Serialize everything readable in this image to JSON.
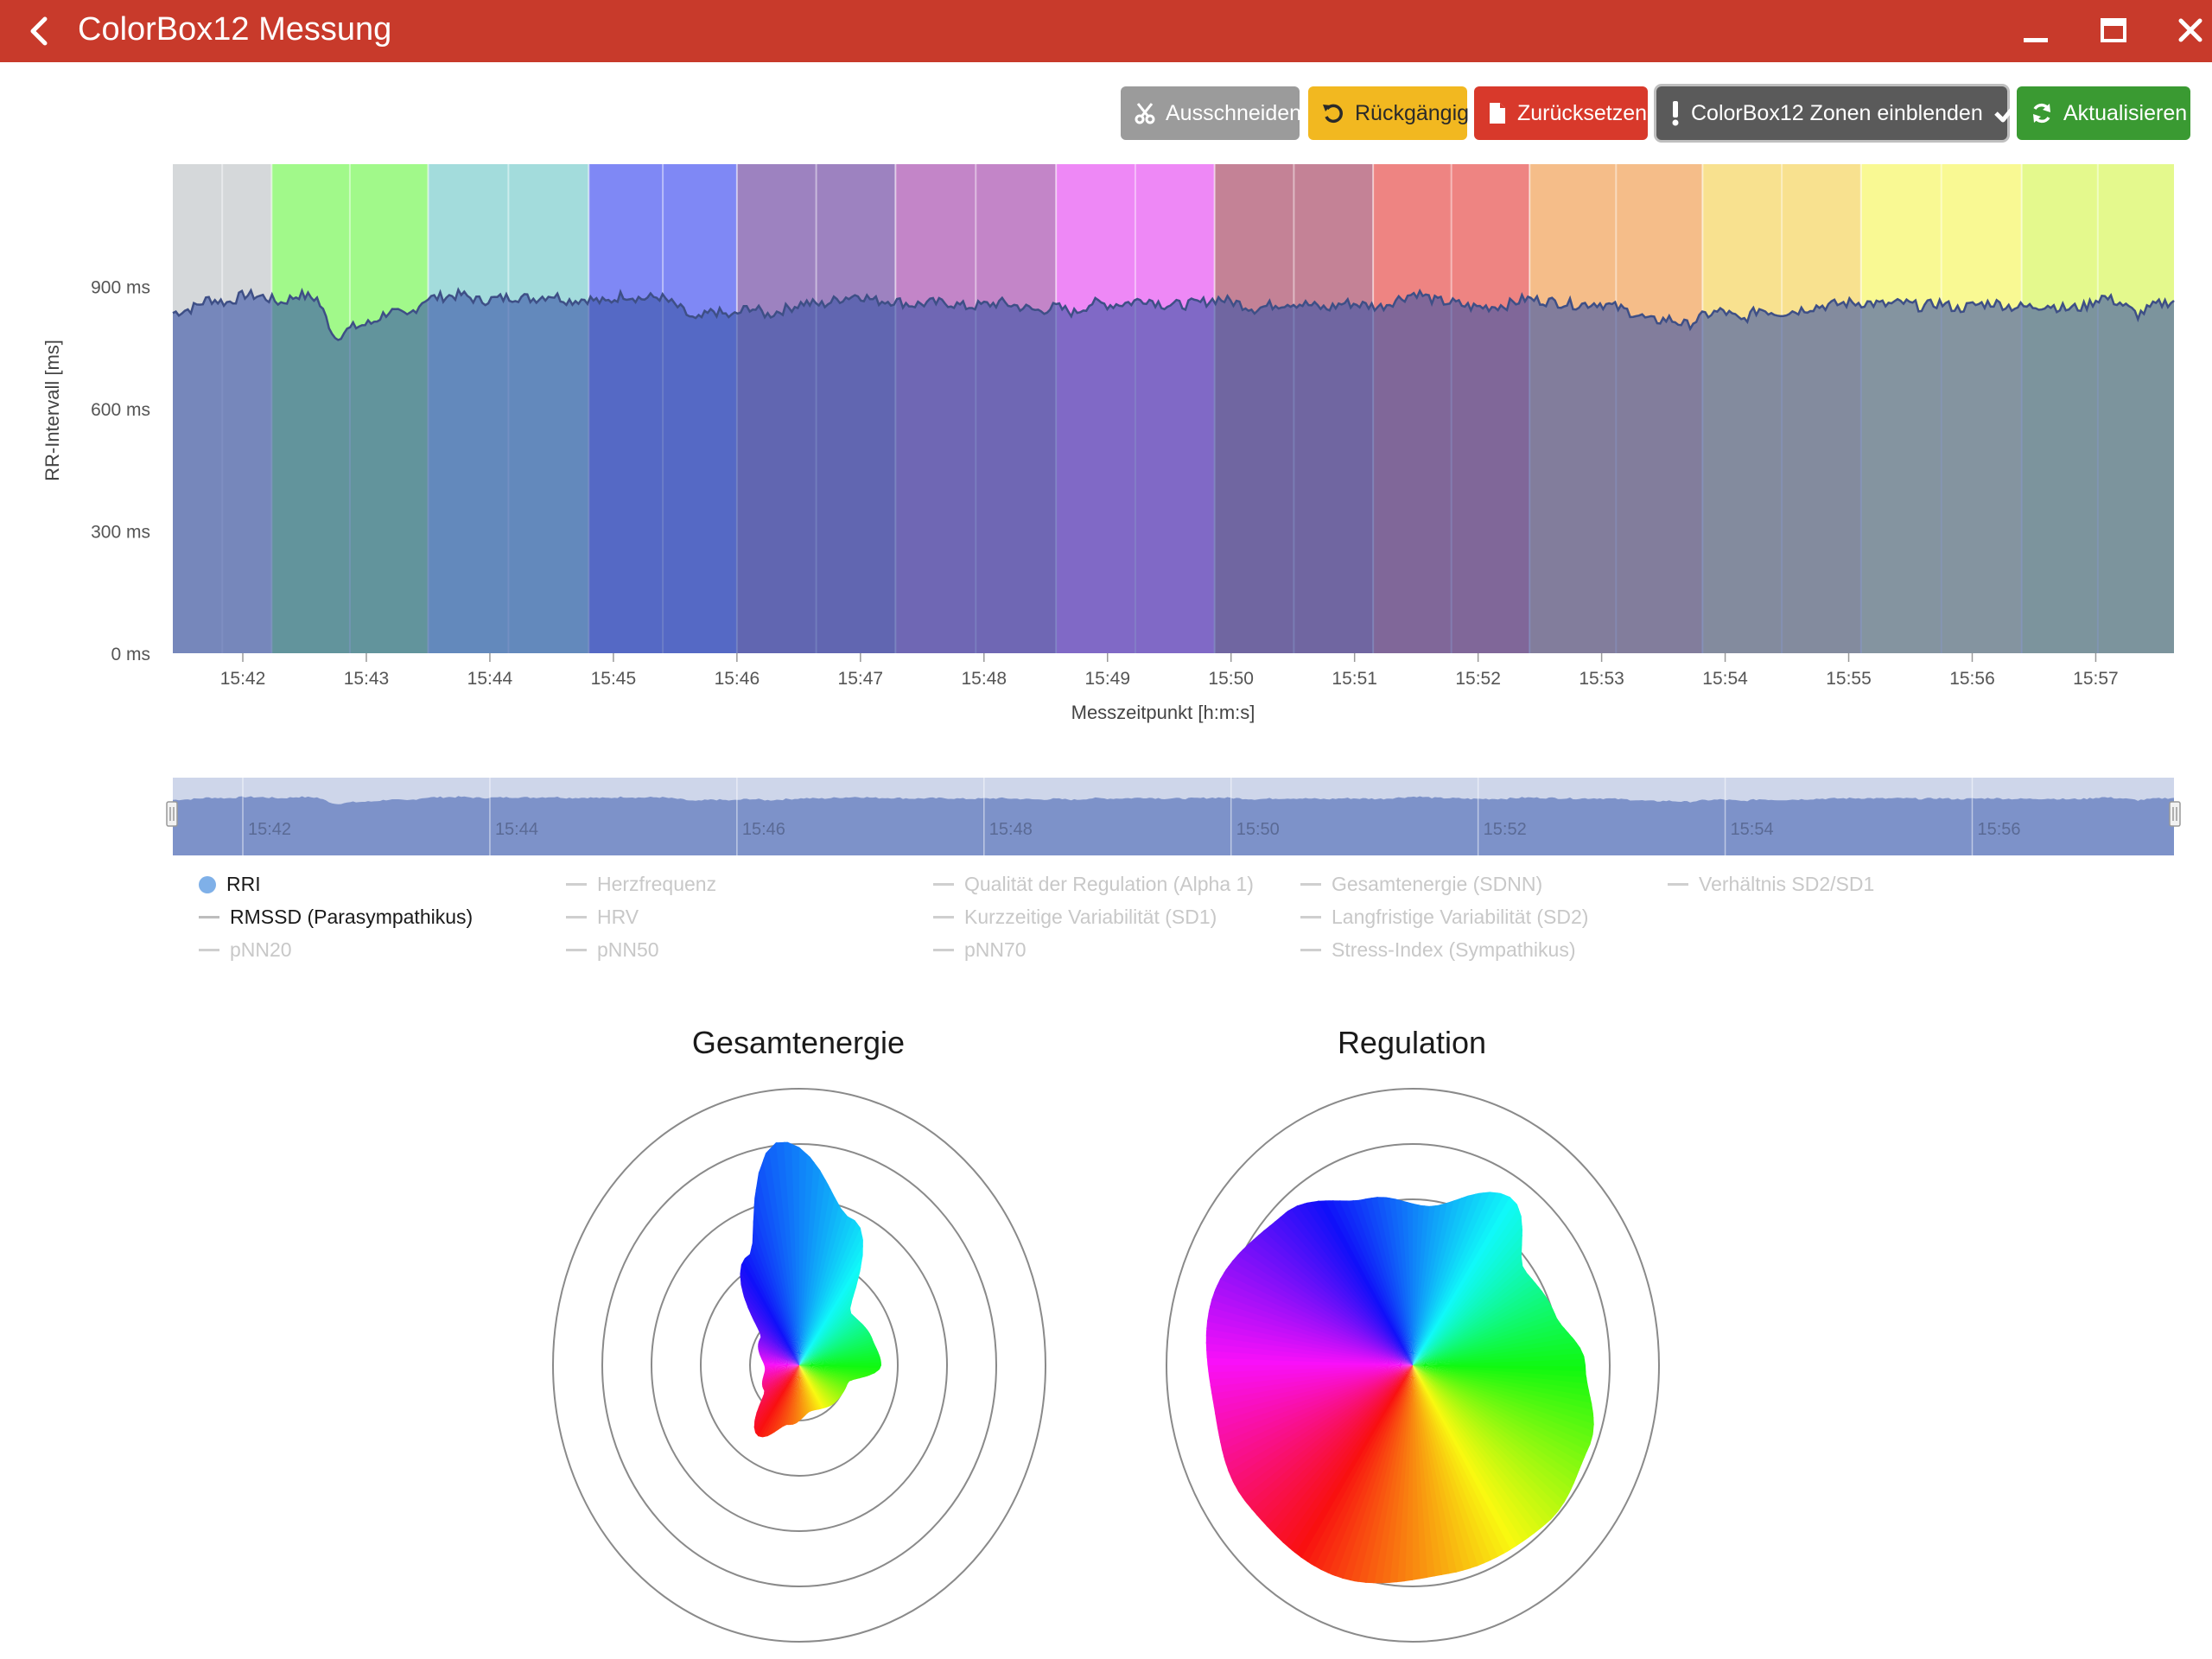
{
  "window": {
    "title": "ColorBox12 Messung"
  },
  "toolbar": {
    "cut_label": "Ausschneiden",
    "undo_label": "Rückgängig",
    "reset_label": "Zurücksetzen",
    "zones_label": "ColorBox12 Zonen einblenden",
    "refresh_label": "Aktualisieren"
  },
  "colors": {
    "titlebar": "#c83a2b",
    "cut": "#9b9b9b",
    "undo": "#f2b820",
    "reset": "#d8392b",
    "zones": "#5a5a5a",
    "refresh": "#3a9a32",
    "series_fill": "#5a72b5"
  },
  "chart_data": [
    {
      "type": "area",
      "series": [
        {
          "name": "RRI"
        }
      ],
      "xlabel": "Messzeitpunkt [h:m:s]",
      "ylabel": "RR-Intervall [ms]",
      "x_ticks": [
        "15:42",
        "15:43",
        "15:44",
        "15:45",
        "15:46",
        "15:47",
        "15:48",
        "15:49",
        "15:50",
        "15:51",
        "15:52",
        "15:53",
        "15:54",
        "15:55",
        "15:56",
        "15:57"
      ],
      "y_ticks": [
        "0 ms",
        "300 ms",
        "600 ms",
        "900 ms"
      ],
      "ylim": [
        0,
        1200
      ],
      "x_range": [
        "15:41:26",
        "15:57:38"
      ],
      "zones": [
        {
          "start": "15:41:26",
          "end": "15:42:14",
          "color": "#d5d8da"
        },
        {
          "start": "15:42:14",
          "end": "15:43:30",
          "color": "#a1f98a"
        },
        {
          "start": "15:43:30",
          "end": "15:44:48",
          "color": "#a3dcdc"
        },
        {
          "start": "15:44:48",
          "end": "15:46:00",
          "color": "#7f88f5"
        },
        {
          "start": "15:46:00",
          "end": "15:47:17",
          "color": "#9d82c0"
        },
        {
          "start": "15:47:17",
          "end": "15:48:35",
          "color": "#c385c8"
        },
        {
          "start": "15:48:35",
          "end": "15:49:52",
          "color": "#ee88f6"
        },
        {
          "start": "15:49:52",
          "end": "15:51:09",
          "color": "#c48296"
        },
        {
          "start": "15:51:09",
          "end": "15:52:25",
          "color": "#ee8482"
        },
        {
          "start": "15:52:25",
          "end": "15:53:49",
          "color": "#f5bd89"
        },
        {
          "start": "15:53:49",
          "end": "15:55:06",
          "color": "#f8e18f"
        },
        {
          "start": "15:55:06",
          "end": "15:56:24",
          "color": "#f9f993"
        },
        {
          "start": "15:56:24",
          "end": "15:57:38",
          "color": "#e4f98d"
        }
      ],
      "values_ms": [
        835,
        845,
        870,
        860,
        880,
        875,
        860,
        880,
        870,
        775,
        800,
        810,
        840,
        825,
        870,
        875,
        880,
        865,
        870,
        875,
        870,
        880,
        865,
        870,
        860,
        880,
        870,
        875,
        850,
        815,
        840,
        825,
        850,
        830,
        845,
        860,
        855,
        870,
        880,
        865,
        865,
        855,
        860,
        860,
        850,
        855,
        860,
        850,
        840,
        850,
        835,
        860,
        855,
        860,
        870,
        855,
        855,
        860,
        870,
        860,
        845,
        855,
        860,
        855,
        845,
        860,
        855,
        850,
        870,
        885,
        865,
        860,
        850,
        850,
        855,
        870,
        865,
        860,
        855,
        860,
        850,
        835,
        815,
        820,
        805,
        830,
        840,
        815,
        845,
        835,
        840,
        850,
        855,
        860,
        860,
        855,
        860,
        850,
        860,
        845,
        855,
        860,
        850,
        850,
        855,
        845,
        850,
        875,
        860,
        830,
        855,
        865
      ],
      "minimap_ticks": [
        "15:42",
        "15:44",
        "15:46",
        "15:48",
        "15:50",
        "15:52",
        "15:54",
        "15:56"
      ]
    },
    {
      "type": "radar",
      "title": "Gesamtenergie",
      "rings": 5
    },
    {
      "type": "radar",
      "title": "Regulation",
      "rings": 5
    }
  ],
  "legend": [
    {
      "label": "RRI",
      "active": true,
      "marker": "dot"
    },
    {
      "label": "RMSSD (Parasympathikus)",
      "active": true,
      "marker": "line"
    },
    {
      "label": "pNN20",
      "active": false,
      "marker": "line"
    },
    {
      "label": "Herzfrequenz",
      "active": false,
      "marker": "line"
    },
    {
      "label": "HRV",
      "active": false,
      "marker": "line"
    },
    {
      "label": "pNN50",
      "active": false,
      "marker": "line"
    },
    {
      "label": "Qualität der Regulation (Alpha 1)",
      "active": false,
      "marker": "line"
    },
    {
      "label": "Kurzzeitige Variabilität (SD1)",
      "active": false,
      "marker": "line"
    },
    {
      "label": "pNN70",
      "active": false,
      "marker": "line"
    },
    {
      "label": "Gesamtenergie (SDNN)",
      "active": false,
      "marker": "line"
    },
    {
      "label": "Langfristige Variabilität (SD2)",
      "active": false,
      "marker": "line"
    },
    {
      "label": "Stress-Index (Sympathikus)",
      "active": false,
      "marker": "line"
    },
    {
      "label": "Verhältnis SD2/SD1",
      "active": false,
      "marker": "line"
    }
  ]
}
